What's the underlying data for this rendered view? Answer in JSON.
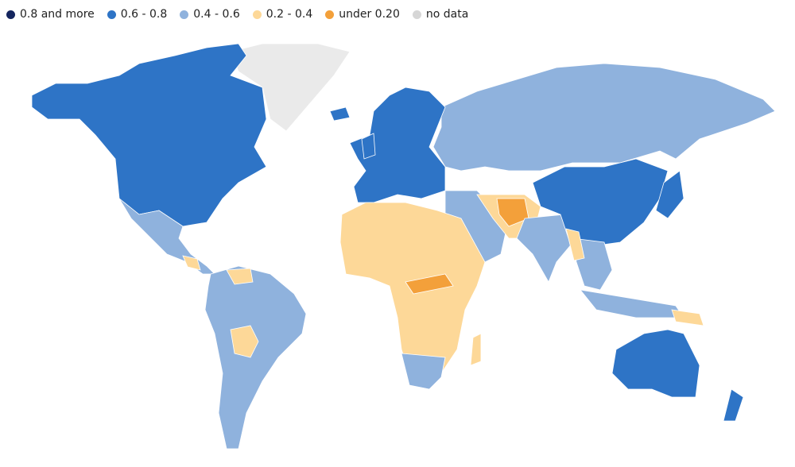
{
  "legend": {
    "items": [
      {
        "label": "0.8 and more",
        "color": "#14255e"
      },
      {
        "label": "0.6 - 0.8",
        "color": "#2e74c6"
      },
      {
        "label": "0.4 - 0.6",
        "color": "#8fb2dd"
      },
      {
        "label": "0.2 - 0.4",
        "color": "#fdd898"
      },
      {
        "label": "under 0.20",
        "color": "#f3a03a"
      },
      {
        "label": "no data",
        "color": "#d6d6d6"
      }
    ]
  }
}
